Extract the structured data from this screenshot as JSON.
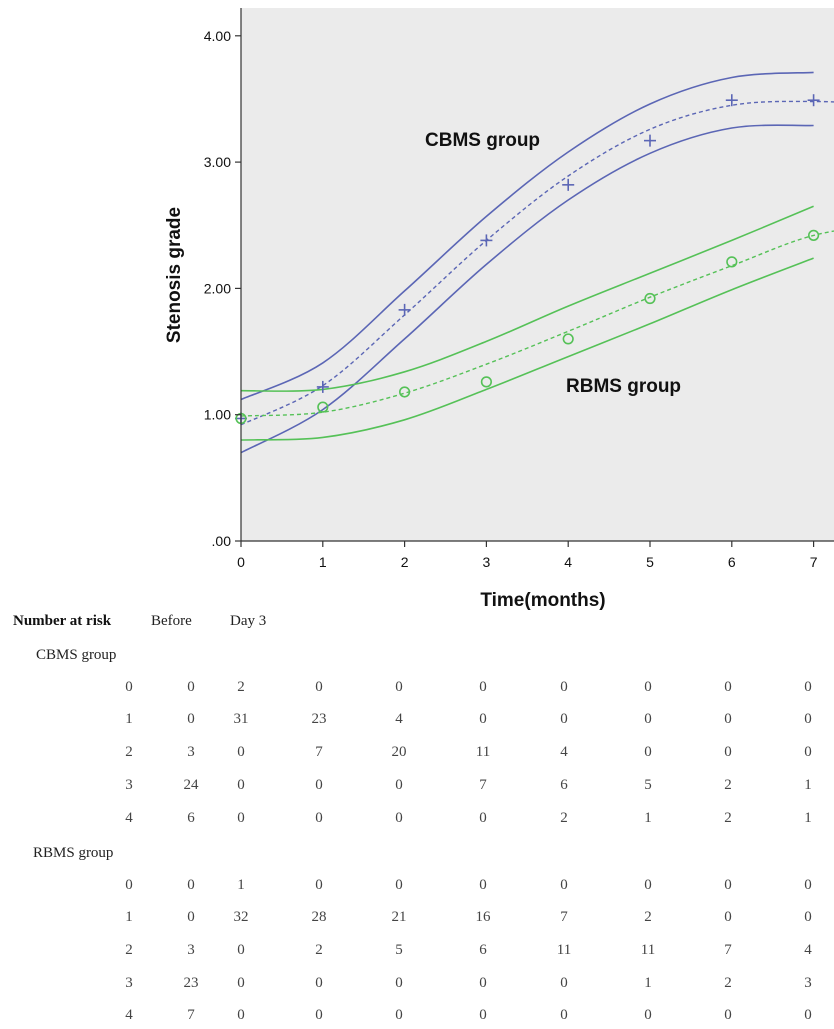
{
  "chart_data": {
    "type": "scatter",
    "xlabel": "Time(months)",
    "ylabel": "Stenosis grade",
    "xlim": [
      0,
      7.3
    ],
    "ylim": [
      0,
      4.2
    ],
    "x_ticks": [
      "0",
      "1",
      "2",
      "3",
      "4",
      "5",
      "6",
      "7"
    ],
    "y_ticks": [
      ".00",
      "1.00",
      "2.00",
      "3.00",
      "4.00"
    ],
    "grid": false,
    "plot_background": "#ebebeb",
    "series": [
      {
        "name": "CBMS group",
        "color": "#5b66b5",
        "marker": "plus",
        "x": [
          0,
          1,
          2,
          3,
          4,
          5,
          6,
          7
        ],
        "y": [
          0.97,
          1.22,
          1.83,
          2.38,
          2.82,
          3.17,
          3.49,
          3.49
        ],
        "fit": [
          0.92,
          1.23,
          1.79,
          2.38,
          2.89,
          3.26,
          3.45,
          3.48,
          3.45
        ],
        "upper_ci": [
          1.12,
          1.41,
          1.98,
          2.57,
          3.08,
          3.46,
          3.67,
          3.71
        ],
        "lower_ci": [
          0.7,
          1.04,
          1.6,
          2.19,
          2.7,
          3.07,
          3.27,
          3.29
        ]
      },
      {
        "name": "RBMS group",
        "color": "#55c157",
        "marker": "circle",
        "x": [
          0,
          1,
          2,
          3,
          4,
          5,
          6,
          7
        ],
        "y": [
          0.97,
          1.06,
          1.18,
          1.26,
          1.6,
          1.92,
          2.21,
          2.42
        ],
        "fit": [
          0.99,
          1.02,
          1.17,
          1.4,
          1.66,
          1.93,
          2.18,
          2.42,
          2.52
        ],
        "upper_ci": [
          1.19,
          1.2,
          1.34,
          1.58,
          1.86,
          2.12,
          2.38,
          2.65
        ],
        "lower_ci": [
          0.8,
          0.82,
          0.96,
          1.2,
          1.46,
          1.72,
          1.99,
          2.24
        ]
      }
    ],
    "annotations": [
      "CBMS group",
      "RBMS group"
    ]
  },
  "risk_table": {
    "title": "Number at risk",
    "columns": [
      "Before",
      "Day 3"
    ],
    "groups": [
      {
        "name": "CBMS group",
        "rows": [
          [
            "0",
            "0",
            "2",
            "0",
            "0",
            "0",
            "0",
            "0",
            "0",
            "0"
          ],
          [
            "1",
            "0",
            "31",
            "23",
            "4",
            "0",
            "0",
            "0",
            "0",
            "0"
          ],
          [
            "2",
            "3",
            "0",
            "7",
            "20",
            "11",
            "4",
            "0",
            "0",
            "0"
          ],
          [
            "3",
            "24",
            "0",
            "0",
            "0",
            "7",
            "6",
            "5",
            "2",
            "1"
          ],
          [
            "4",
            "6",
            "0",
            "0",
            "0",
            "0",
            "2",
            "1",
            "2",
            "1"
          ]
        ]
      },
      {
        "name": "RBMS group",
        "rows": [
          [
            "0",
            "0",
            "1",
            "0",
            "0",
            "0",
            "0",
            "0",
            "0",
            "0"
          ],
          [
            "1",
            "0",
            "32",
            "28",
            "21",
            "16",
            "7",
            "2",
            "0",
            "0"
          ],
          [
            "2",
            "3",
            "0",
            "2",
            "5",
            "6",
            "11",
            "11",
            "7",
            "4"
          ],
          [
            "3",
            "23",
            "0",
            "0",
            "0",
            "0",
            "0",
            "1",
            "2",
            "3"
          ],
          [
            "4",
            "7",
            "0",
            "0",
            "0",
            "0",
            "0",
            "0",
            "0",
            "0"
          ]
        ]
      }
    ]
  }
}
